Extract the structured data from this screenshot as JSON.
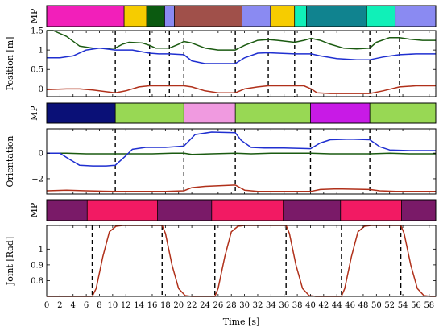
{
  "chart_data": [
    {
      "type": "heatmap",
      "ylabel": "MP",
      "segments": [
        {
          "start": 0,
          "end": 10.3,
          "color": "#f21fba"
        },
        {
          "start": 10.3,
          "end": 13.3,
          "color": "#f6cc00"
        },
        {
          "start": 13.3,
          "end": 15.7,
          "color": "#0b5a10"
        },
        {
          "start": 15.7,
          "end": 17.0,
          "color": "#8a8af2"
        },
        {
          "start": 17.0,
          "end": 26.0,
          "color": "#a0504a"
        },
        {
          "start": 26.0,
          "end": 29.8,
          "color": "#8a8af2"
        },
        {
          "start": 29.8,
          "end": 33.0,
          "color": "#f6cc00"
        },
        {
          "start": 33.0,
          "end": 34.6,
          "color": "#10f0b8"
        },
        {
          "start": 34.6,
          "end": 42.6,
          "color": "#10838f"
        },
        {
          "start": 42.6,
          "end": 46.4,
          "color": "#10f0b8"
        },
        {
          "start": 46.4,
          "end": 51.8,
          "color": "#8a8af2"
        }
      ],
      "xlim": [
        0,
        51.8
      ]
    },
    {
      "type": "line",
      "ylabel": "Position [m]",
      "ylim": [
        -0.2,
        1.5
      ],
      "yticks": [
        "0",
        "0.5",
        "1",
        "1.5"
      ],
      "ytick_values": [
        0,
        0.5,
        1,
        1.5
      ],
      "xlim": [
        0,
        59
      ],
      "boundaries": [
        10.4,
        15.6,
        18.6,
        20.8,
        28.6,
        33.6,
        37.6,
        40.1,
        49.0,
        53.5
      ],
      "series": [
        {
          "color": "#1a5a10",
          "x": [
            0,
            1,
            3,
            5,
            7,
            9,
            10.4,
            11.5,
            12.5,
            14.5,
            15.6,
            16.5,
            18.6,
            20,
            20.8,
            22,
            24,
            26,
            28.6,
            30,
            32,
            33.6,
            35,
            37.6,
            39,
            40.1,
            41.5,
            43,
            45,
            47,
            49,
            50,
            52,
            53.5,
            55,
            57,
            59
          ],
          "y": [
            1.5,
            1.5,
            1.35,
            1.1,
            1.05,
            1.05,
            1.05,
            1.15,
            1.2,
            1.18,
            1.12,
            1.05,
            1.05,
            1.15,
            1.22,
            1.18,
            1.05,
            1.0,
            1.0,
            1.12,
            1.25,
            1.27,
            1.25,
            1.2,
            1.25,
            1.3,
            1.25,
            1.15,
            1.05,
            1.03,
            1.05,
            1.2,
            1.32,
            1.32,
            1.28,
            1.25,
            1.25
          ]
        },
        {
          "color": "#1f2fd0",
          "x": [
            0,
            2,
            4,
            6,
            8,
            10.4,
            11.5,
            13,
            15.6,
            17,
            18.6,
            20.8,
            22,
            24,
            26,
            28.6,
            30,
            32,
            33.6,
            35,
            37.6,
            40.1,
            41.5,
            44,
            47,
            49,
            51,
            53.5,
            56,
            59
          ],
          "y": [
            0.8,
            0.8,
            0.85,
            1.0,
            1.05,
            1.0,
            1.0,
            1.0,
            0.92,
            0.9,
            0.9,
            0.88,
            0.72,
            0.65,
            0.65,
            0.65,
            0.8,
            0.92,
            0.93,
            0.92,
            0.9,
            0.9,
            0.85,
            0.78,
            0.75,
            0.75,
            0.82,
            0.88,
            0.9,
            0.9
          ]
        },
        {
          "color": "#b0301a",
          "x": [
            0,
            3,
            5,
            7,
            10.4,
            12,
            14,
            15.6,
            18.6,
            20.8,
            22,
            24,
            26,
            28.6,
            30,
            32,
            33.6,
            35,
            37.6,
            39,
            40.1,
            41,
            43,
            45,
            47,
            49,
            51,
            53.5,
            56,
            59
          ],
          "y": [
            -0.02,
            0.0,
            0.0,
            -0.03,
            -0.1,
            -0.05,
            0.05,
            0.08,
            0.08,
            0.08,
            0.05,
            -0.05,
            -0.1,
            -0.1,
            0.0,
            0.05,
            0.08,
            0.08,
            0.08,
            0.08,
            0.0,
            -0.1,
            -0.12,
            -0.12,
            -0.12,
            -0.12,
            -0.05,
            0.05,
            0.08,
            0.08
          ]
        }
      ]
    },
    {
      "type": "heatmap",
      "ylabel": "MP",
      "segments": [
        {
          "start": 0,
          "end": 10.4,
          "color": "#0a1077"
        },
        {
          "start": 10.4,
          "end": 20.8,
          "color": "#98d854"
        },
        {
          "start": 20.8,
          "end": 28.6,
          "color": "#f09ae0"
        },
        {
          "start": 28.6,
          "end": 40.0,
          "color": "#98d854"
        },
        {
          "start": 40.0,
          "end": 49.0,
          "color": "#c81ae6"
        },
        {
          "start": 49.0,
          "end": 59.0,
          "color": "#98d854"
        }
      ],
      "xlim": [
        0,
        59
      ]
    },
    {
      "type": "line",
      "ylabel": "Orientation",
      "ylim": [
        -3.2,
        1.9
      ],
      "yticks": [
        "−2",
        "0"
      ],
      "ytick_values": [
        -2,
        0
      ],
      "xlim": [
        0,
        59
      ],
      "boundaries": [
        10.4,
        20.8,
        28.6,
        40.0,
        49.0
      ],
      "series": [
        {
          "color": "#1a5a10",
          "x": [
            0,
            3,
            6,
            9,
            10.4,
            13,
            16,
            19,
            20.8,
            22,
            25,
            28.6,
            31,
            34,
            37,
            40,
            43,
            46,
            49,
            52,
            55,
            59
          ],
          "y": [
            0.0,
            0.0,
            -0.05,
            -0.05,
            -0.05,
            -0.05,
            -0.05,
            0.0,
            0.0,
            -0.1,
            -0.05,
            0.0,
            -0.05,
            0.0,
            0.0,
            0.0,
            -0.05,
            -0.05,
            -0.05,
            0.0,
            -0.05,
            -0.05
          ]
        },
        {
          "color": "#1f2fd0",
          "x": [
            0,
            2,
            3.5,
            5,
            7,
            9,
            10.4,
            12,
            13,
            15,
            18,
            20.8,
            22.5,
            25,
            28.6,
            29.5,
            31,
            33,
            36,
            40.0,
            41.5,
            43,
            46,
            49.0,
            50.5,
            52,
            55,
            59
          ],
          "y": [
            0.0,
            0.0,
            -0.5,
            -0.95,
            -1.0,
            -1.0,
            -0.95,
            -0.2,
            0.3,
            0.45,
            0.45,
            0.55,
            1.45,
            1.65,
            1.6,
            1.0,
            0.45,
            0.4,
            0.4,
            0.35,
            0.8,
            1.05,
            1.1,
            1.05,
            0.5,
            0.25,
            0.2,
            0.2
          ]
        },
        {
          "color": "#b0301a",
          "x": [
            0,
            3,
            6,
            10.4,
            14,
            18,
            20.8,
            22,
            24,
            28.6,
            30,
            32,
            36,
            40.0,
            41.5,
            44,
            49.0,
            50.5,
            53,
            59
          ],
          "y": [
            -2.95,
            -2.9,
            -2.95,
            -3.0,
            -3.0,
            -3.0,
            -2.95,
            -2.7,
            -2.6,
            -2.5,
            -2.9,
            -3.0,
            -3.0,
            -3.0,
            -2.85,
            -2.8,
            -2.85,
            -2.95,
            -3.0,
            -3.0
          ]
        }
      ]
    },
    {
      "type": "heatmap",
      "ylabel": "MP",
      "segments": [
        {
          "start": 0,
          "end": 6.5,
          "color": "#7a1a68"
        },
        {
          "start": 6.5,
          "end": 17.8,
          "color": "#f21a63"
        },
        {
          "start": 17.8,
          "end": 26.5,
          "color": "#7a1a68"
        },
        {
          "start": 26.5,
          "end": 38.0,
          "color": "#f21a63"
        },
        {
          "start": 38.0,
          "end": 47.2,
          "color": "#7a1a68"
        },
        {
          "start": 47.2,
          "end": 57.0,
          "color": "#f21a63"
        },
        {
          "start": 57.0,
          "end": 62.5,
          "color": "#7a1a68"
        }
      ],
      "xlim": [
        0,
        62.5
      ]
    },
    {
      "type": "line",
      "ylabel": "Joint [Rad]",
      "xlabel": "Time [s]",
      "ylim": [
        0.7,
        1.15
      ],
      "yticks": [
        "0.8",
        "0.9",
        "1"
      ],
      "ytick_values": [
        0.8,
        0.9,
        1.0
      ],
      "xlim": [
        0,
        59
      ],
      "xticks": [
        "0",
        "2",
        "4",
        "6",
        "8",
        "10",
        "12",
        "14",
        "16",
        "18",
        "20",
        "22",
        "24",
        "26",
        "28",
        "30",
        "32",
        "34",
        "36",
        "38",
        "40",
        "42",
        "44",
        "46",
        "48",
        "50",
        "52",
        "54",
        "56",
        "58"
      ],
      "xtick_values": [
        0,
        2,
        4,
        6,
        8,
        10,
        12,
        14,
        16,
        18,
        20,
        22,
        24,
        26,
        28,
        30,
        32,
        34,
        36,
        38,
        40,
        42,
        44,
        46,
        48,
        50,
        52,
        54,
        56,
        58
      ],
      "boundaries": [
        6.9,
        17.5,
        25.5,
        36.3,
        44.7,
        53.7
      ],
      "series": [
        {
          "color": "#b0301a",
          "x": [
            0,
            6.9,
            7.5,
            8.5,
            9.5,
            10.5,
            11.5,
            17.5,
            18.0,
            19.0,
            20.0,
            21.0,
            22.0,
            25.5,
            26.0,
            27.0,
            28.0,
            29.0,
            30.0,
            36.3,
            36.8,
            37.8,
            38.8,
            39.8,
            40.8,
            44.7,
            45.2,
            46.2,
            47.2,
            48.2,
            49.2,
            53.7,
            54.2,
            55.2,
            56.2,
            57.2,
            58.2,
            59
          ],
          "y": [
            0.7,
            0.7,
            0.75,
            0.95,
            1.11,
            1.145,
            1.15,
            1.15,
            1.1,
            0.9,
            0.75,
            0.705,
            0.7,
            0.7,
            0.75,
            0.95,
            1.11,
            1.145,
            1.15,
            1.15,
            1.1,
            0.9,
            0.75,
            0.705,
            0.7,
            0.7,
            0.75,
            0.95,
            1.11,
            1.145,
            1.15,
            1.15,
            1.1,
            0.9,
            0.75,
            0.705,
            0.7,
            0.7
          ]
        }
      ]
    }
  ]
}
